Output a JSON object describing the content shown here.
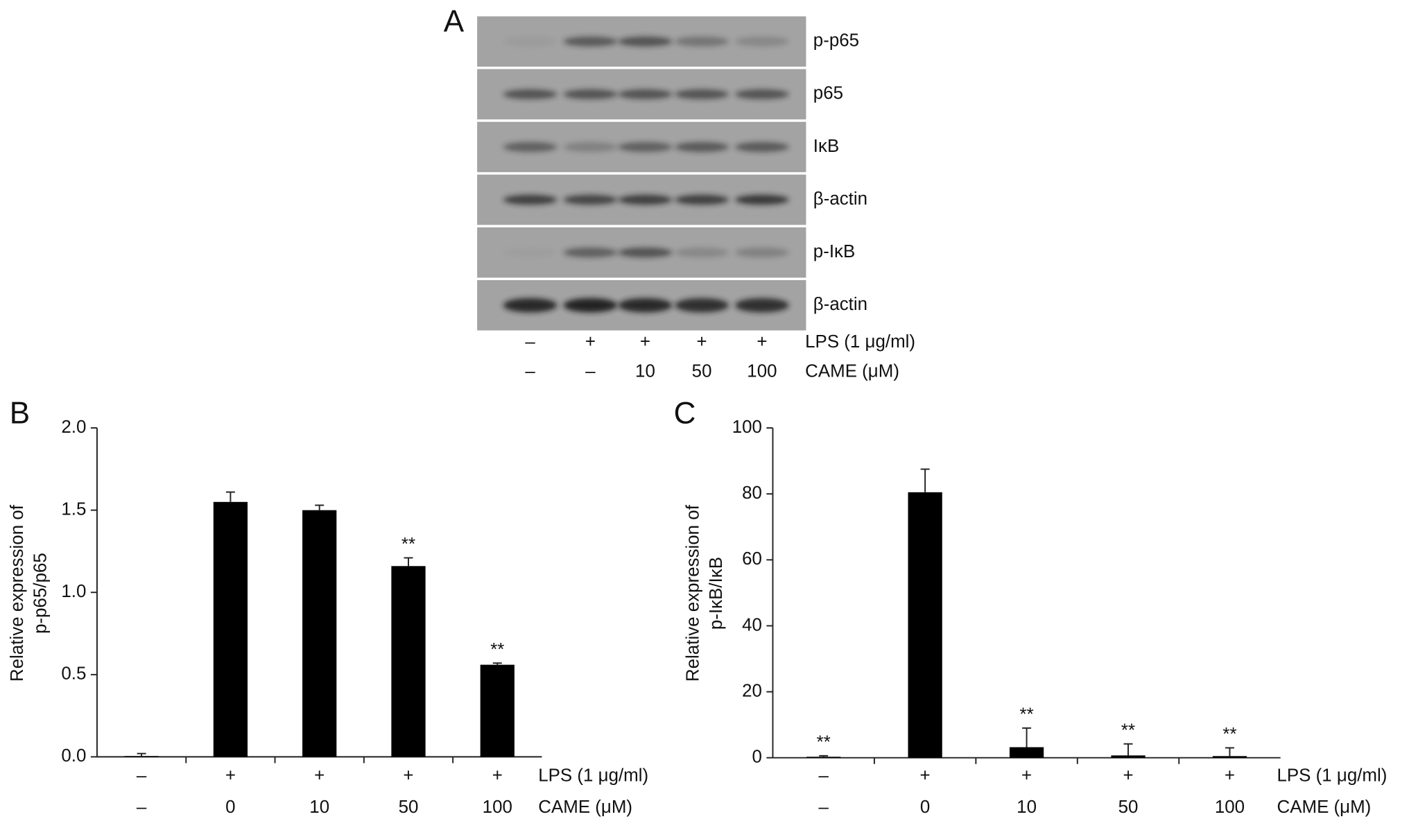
{
  "blot": {
    "panel": "A",
    "bands": [
      "p-p65",
      "p65",
      "IκB",
      "β-actin",
      "p-IκB",
      "β-actin"
    ],
    "lps_label": "LPS (1 μg/ml)",
    "lps": [
      "–",
      "+",
      "+",
      "+",
      "+"
    ],
    "came_label": "CAME (μM)",
    "came": [
      "–",
      "–",
      "10",
      "50",
      "100"
    ]
  },
  "chart_data": [
    {
      "type": "bar",
      "panel": "B",
      "ylabel": [
        "Relative expression of",
        "p-p65/p65"
      ],
      "lps_label": "LPS (1 μg/ml)",
      "lps_categories": [
        "–",
        "+",
        "+",
        "+",
        "+"
      ],
      "category_label": "CAME (μM)",
      "categories": [
        "–",
        "0",
        "10",
        "50",
        "100"
      ],
      "values": [
        0.005,
        1.55,
        1.5,
        1.16,
        0.56
      ],
      "errors": [
        0.015,
        0.06,
        0.03,
        0.05,
        0.01
      ],
      "annotations": [
        null,
        null,
        null,
        "**",
        "**"
      ],
      "color": "#000000",
      "ylim": [
        0,
        2
      ],
      "yticks": [
        {
          "value": 0,
          "label": "0.0"
        },
        0.5,
        {
          "value": 1,
          "label": "1.0"
        },
        1.5,
        {
          "value": 2,
          "label": "2.0"
        }
      ]
    },
    {
      "type": "bar",
      "panel": "C",
      "ylabel": [
        "Relative expression of",
        "p-IκB/IκB"
      ],
      "lps_label": "LPS (1 μg/ml)",
      "lps_categories": [
        "–",
        "+",
        "+",
        "+",
        "+"
      ],
      "category_label": "CAME (μM)",
      "categories": [
        "–",
        "0",
        "10",
        "50",
        "100"
      ],
      "values": [
        0.3,
        80.5,
        3.2,
        0.7,
        0.5
      ],
      "errors": [
        0.3,
        7,
        5.8,
        3.5,
        2.5
      ],
      "annotations": [
        "**",
        null,
        "**",
        "**",
        "**"
      ],
      "color": "#000000",
      "ylim": [
        0,
        100
      ],
      "yticks": [
        0,
        20,
        40,
        60,
        80,
        100
      ]
    }
  ]
}
